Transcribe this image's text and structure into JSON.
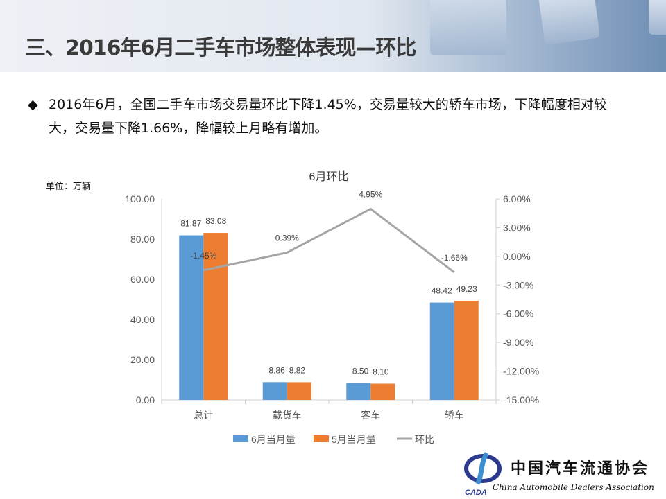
{
  "header": {
    "title": "三、2016年6月二手车市场整体表现—环比"
  },
  "bullet": {
    "icon": "diamond-icon",
    "text": "2016年6月，全国二手车市场交易量环比下降1.45%，交易量较大的轿车市场，下降幅度相对较大，交易量下降1.66%，降幅较上月略有增加。"
  },
  "chart_data": {
    "type": "bar",
    "title": "6月环比",
    "unit_label": "单位：万辆",
    "categories": [
      "总计",
      "载货车",
      "客车",
      "轿车"
    ],
    "series": [
      {
        "name": "6月当月量",
        "type": "bar",
        "axis": "left",
        "color": "#5b9bd5",
        "values": [
          81.87,
          8.86,
          8.5,
          48.42
        ],
        "labels": [
          "81.87",
          "8.86",
          "8.50",
          "48.42"
        ]
      },
      {
        "name": "5月当月量",
        "type": "bar",
        "axis": "left",
        "color": "#ed7d31",
        "values": [
          83.08,
          8.82,
          8.1,
          49.23
        ],
        "labels": [
          "83.08",
          "8.82",
          "8.10",
          "49.23"
        ]
      },
      {
        "name": "环比",
        "type": "line",
        "axis": "right",
        "color": "#a5a5a5",
        "values": [
          -1.45,
          0.39,
          4.95,
          -1.66
        ],
        "labels": [
          "-1.45%",
          "0.39%",
          "4.95%",
          "-1.66%"
        ]
      }
    ],
    "left_axis": {
      "ylim": [
        0,
        100
      ],
      "ticks": [
        "0.00",
        "20.00",
        "40.00",
        "60.00",
        "80.00",
        "100.00"
      ]
    },
    "right_axis": {
      "ylim": [
        -15,
        6
      ],
      "ticks": [
        "-15.00%",
        "-12.00%",
        "-9.00%",
        "-6.00%",
        "-3.00%",
        "0.00%",
        "3.00%",
        "6.00%"
      ]
    },
    "grid": false,
    "legend": "bottom"
  },
  "logo": {
    "cn": "中国汽车流通协会",
    "en": "China Automobile Dealers Association",
    "abbr": "CADA"
  }
}
